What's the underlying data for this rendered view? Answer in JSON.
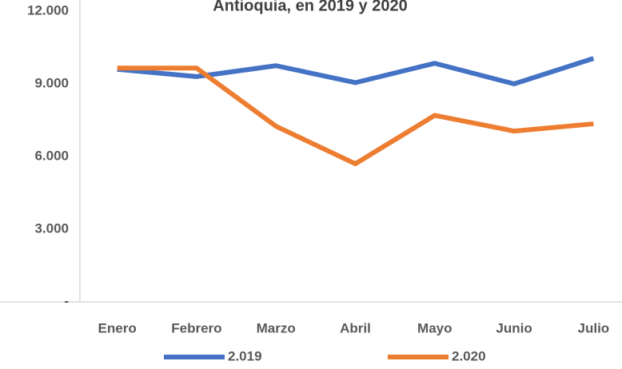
{
  "chart_data": {
    "type": "line",
    "title": "Antioquia, en 2019 y 2020",
    "categories": [
      "Enero",
      "Febrero",
      "Marzo",
      "Abril",
      "Mayo",
      "Junio",
      "Julio"
    ],
    "series": [
      {
        "name": "2.019",
        "color": "#4472c4",
        "values": [
          9600,
          9300,
          9750,
          9050,
          9850,
          9000,
          10050
        ]
      },
      {
        "name": "2.020",
        "color": "#ed7d31",
        "values": [
          9650,
          9650,
          7250,
          5700,
          7700,
          7050,
          7350
        ]
      }
    ],
    "ylim": [
      0,
      12000
    ],
    "yticks": [
      {
        "value": 0,
        "label": "-"
      },
      {
        "value": 3000,
        "label": "3.000"
      },
      {
        "value": 6000,
        "label": "6.000"
      },
      {
        "value": 9000,
        "label": "9.000"
      },
      {
        "value": 12000,
        "label": "12.000"
      }
    ],
    "legend": "bottom"
  }
}
